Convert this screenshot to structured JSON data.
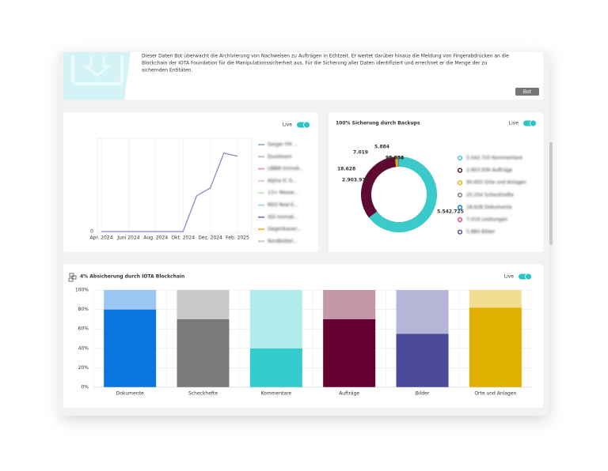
{
  "header": {
    "description": [
      "Dieser Daten Bot überwacht die Archivierung von Nachweisen zu Aufträgen in Echtzeit. Er wertet darüber hinaus die Meldung von Fingerabdrücken an die",
      "Blockchain der IOTA Foundation für die Manipulationssicherheit aus. Für die Sicherung aller Daten identifiziert und errechnet er die Menge der zu",
      "sichernden Entitäten."
    ],
    "button": "Bot"
  },
  "chart_data": [
    {
      "type": "line",
      "live": "Live",
      "categories": [
        "Apr. 2024",
        null,
        "Juni 2024",
        null,
        "Aug. 2024",
        null,
        "Okt. 2024",
        null,
        "Dez. 2024",
        null,
        "Feb. 2025"
      ],
      "series": [
        {
          "color": "#8084c8",
          "values": [
            0,
            0,
            0,
            0,
            0,
            0,
            0,
            46,
            56,
            101,
            97
          ]
        }
      ],
      "legend": [
        {
          "name": "Geiger FM ...",
          "color": "#9fb8cc"
        },
        {
          "name": "Duosteam",
          "color": "#b9c4d0"
        },
        {
          "name": "LBBW Immob...",
          "color": "#e6a2b4"
        },
        {
          "name": "Alpha IC G...",
          "color": "#f2c4cf"
        },
        {
          "name": "13+ Messe...",
          "color": "#c9e6c2"
        },
        {
          "name": "RED Real E...",
          "color": "#a9d4ee"
        },
        {
          "name": "ISD Immob...",
          "color": "#8084c8"
        },
        {
          "name": "Gegenbauer...",
          "color": "#f0c040"
        },
        {
          "name": "Nordbüttel...",
          "color": "#c8c8c8"
        }
      ],
      "ylim": [
        0,
        120
      ],
      "yticks": [
        0
      ],
      "grid": true
    },
    {
      "type": "donut",
      "title": "100% Sicherung durch Backups",
      "live": "Live",
      "categories": [
        "Kommentare",
        "Aufträge",
        "Orte und Anlagen",
        "Scheckhefte",
        "Dokumente",
        "Leistungen",
        "Bilder"
      ],
      "values": [
        5542725,
        2903936,
        90603,
        25254,
        18628,
        7019,
        5884
      ],
      "value_labels": [
        "5.542.725",
        "2.903.936",
        "90.603",
        "25.254",
        "18.628",
        "7.019",
        "5.884"
      ],
      "colors": [
        "#3cc9c9",
        "#5e0a32",
        "#e0b000",
        "#7a7a7a",
        "#0a74e0",
        "#e84a7a",
        "#4a4a9a"
      ],
      "legend": [
        "5.542.725 Kommentare",
        "2.903.936 Aufträge",
        "90.603 Orte und Anlagen",
        "25.254 Scheckhefte",
        "18.628 Dokumente",
        "7.019 Leistungen",
        "5.884 Bilder"
      ]
    },
    {
      "type": "stacked_bar",
      "title": "4% Absicherung durch IOTA Blockchain",
      "live": "Live",
      "categories": [
        "Dokumente",
        "Scheckhefte",
        "Kommentare",
        "Aufträge",
        "Bilder",
        "Orte und Anlagen"
      ],
      "series": [
        {
          "values": [
            80,
            70,
            40,
            70,
            55,
            82
          ],
          "colors": [
            "#0a74e0",
            "#7a7a7a",
            "#33cccc",
            "#650032",
            "#4a4a98",
            "#e0b000"
          ]
        },
        {
          "values": [
            20,
            30,
            60,
            30,
            45,
            18
          ],
          "colors": [
            "#9cc6f2",
            "#c8c8c8",
            "#b3ecec",
            "#c496a8",
            "#b5b5d8",
            "#f3dd92"
          ]
        }
      ],
      "ylim": [
        0,
        100
      ],
      "yticks": [
        {
          "value": 0,
          "label": "0%"
        },
        {
          "value": 20,
          "label": "20%"
        },
        {
          "value": 40,
          "label": "40%"
        },
        {
          "value": 60,
          "label": "60%"
        },
        {
          "value": 80,
          "label": "80%"
        },
        {
          "value": 100,
          "label": "100%"
        }
      ],
      "grid": true
    }
  ]
}
